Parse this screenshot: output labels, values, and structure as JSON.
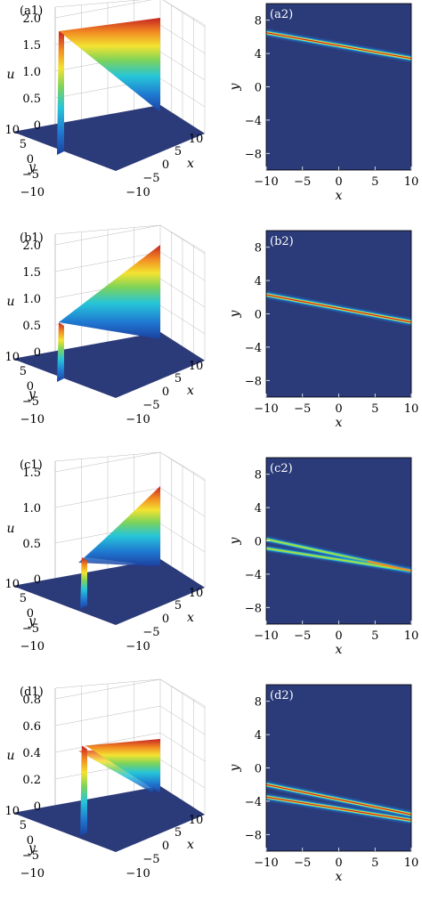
{
  "chart_data": [
    {
      "panel": "(a1)",
      "type": "surface3d",
      "xlabel": "x",
      "ylabel": "y",
      "zlabel": "u",
      "x_ticks": [
        "−10",
        "−5",
        "0",
        "5",
        "10"
      ],
      "y_ticks": [
        "−10",
        "−5",
        "0",
        "5",
        "10"
      ],
      "z_ticks": [
        "0",
        "0.5",
        "1.0",
        "1.5",
        "2.0"
      ],
      "xlim": [
        -10,
        10
      ],
      "ylim": [
        -10,
        10
      ],
      "zlim": [
        0,
        2.0
      ],
      "soliton_count": 1,
      "amplitude_start": 1.75,
      "amplitude_end": 2.0
    },
    {
      "panel": "(a2)",
      "type": "heatmap",
      "xlabel": "x",
      "ylabel": "y",
      "x_ticks": [
        "−10",
        "−5",
        "0",
        "5",
        "10"
      ],
      "y_ticks": [
        "8",
        "4",
        "0",
        "−4",
        "−8"
      ],
      "xlim": [
        -10,
        10
      ],
      "ylim": [
        -10,
        10
      ],
      "lines": [
        {
          "y_at_xmin": 6.5,
          "y_at_xmax": 3.4,
          "intensity": 1.0
        }
      ]
    },
    {
      "panel": "(b1)",
      "type": "surface3d",
      "xlabel": "x",
      "ylabel": "y",
      "zlabel": "u",
      "x_ticks": [
        "−10",
        "−5",
        "0",
        "5",
        "10"
      ],
      "y_ticks": [
        "−10",
        "−5",
        "0",
        "5",
        "10"
      ],
      "z_ticks": [
        "0",
        "0.5",
        "1.0",
        "1.5",
        "2.0"
      ],
      "xlim": [
        -10,
        10
      ],
      "ylim": [
        -10,
        10
      ],
      "zlim": [
        0,
        2.0
      ],
      "soliton_count": 1,
      "amplitude_start": 0.55,
      "amplitude_end": 2.0
    },
    {
      "panel": "(b2)",
      "type": "heatmap",
      "xlabel": "x",
      "ylabel": "y",
      "x_ticks": [
        "−10",
        "−5",
        "0",
        "5",
        "10"
      ],
      "y_ticks": [
        "8",
        "4",
        "0",
        "−4",
        "−8"
      ],
      "xlim": [
        -10,
        10
      ],
      "ylim": [
        -10,
        10
      ],
      "lines": [
        {
          "y_at_xmin": 2.3,
          "y_at_xmax": -1.0,
          "intensity": 1.0
        }
      ]
    },
    {
      "panel": "(c1)",
      "type": "surface3d",
      "xlabel": "x",
      "ylabel": "y",
      "zlabel": "u",
      "x_ticks": [
        "−10",
        "−5",
        "0",
        "5",
        "10"
      ],
      "y_ticks": [
        "−10",
        "−5",
        "0",
        "5",
        "10"
      ],
      "z_ticks": [
        "0",
        "0.5",
        "1.0",
        "1.5"
      ],
      "xlim": [
        -10,
        10
      ],
      "ylim": [
        -10,
        10
      ],
      "zlim": [
        0,
        1.5
      ],
      "soliton_count": 2,
      "amplitude_start": 0.3,
      "amplitude_end": 1.3
    },
    {
      "panel": "(c2)",
      "type": "heatmap",
      "xlabel": "x",
      "ylabel": "y",
      "x_ticks": [
        "−10",
        "−5",
        "0",
        "5",
        "10"
      ],
      "y_ticks": [
        "8",
        "4",
        "0",
        "−4",
        "−8"
      ],
      "xlim": [
        -10,
        10
      ],
      "ylim": [
        -10,
        10
      ],
      "lines": [
        {
          "y_at_xmin": 0.2,
          "y_at_xmax": -3.6,
          "intensity": 0.5
        },
        {
          "y_at_xmin": -0.9,
          "y_at_xmax": -3.6,
          "intensity": 0.5
        }
      ]
    },
    {
      "panel": "(d1)",
      "type": "surface3d",
      "xlabel": "x",
      "ylabel": "y",
      "zlabel": "u",
      "x_ticks": [
        "−10",
        "−5",
        "0",
        "5",
        "10"
      ],
      "y_ticks": [
        "−10",
        "−5",
        "0",
        "5",
        "10"
      ],
      "z_ticks": [
        "0",
        "0.2",
        "0.4",
        "0.6",
        "0.8"
      ],
      "xlim": [
        -10,
        10
      ],
      "ylim": [
        -10,
        10
      ],
      "zlim": [
        0,
        0.8
      ],
      "soliton_count": 2,
      "amplitude_start": 0.45,
      "amplitude_end": 0.5
    },
    {
      "panel": "(d2)",
      "type": "heatmap",
      "xlabel": "x",
      "ylabel": "y",
      "x_ticks": [
        "−10",
        "−5",
        "0",
        "5",
        "10"
      ],
      "y_ticks": [
        "8",
        "4",
        "0",
        "−4",
        "−8"
      ],
      "xlim": [
        -10,
        10
      ],
      "ylim": [
        -10,
        10
      ],
      "lines": [
        {
          "y_at_xmin": -2.0,
          "y_at_xmax": -5.6,
          "intensity": 1.0
        },
        {
          "y_at_xmin": -3.5,
          "y_at_xmax": -6.3,
          "intensity": 1.0
        }
      ]
    }
  ],
  "colors": {
    "background_dark": "#2b3a78",
    "colormap": [
      "#2b3a78",
      "#1f78d1",
      "#26c5d9",
      "#7dd35a",
      "#f3e331",
      "#f28a22",
      "#c62222"
    ]
  }
}
